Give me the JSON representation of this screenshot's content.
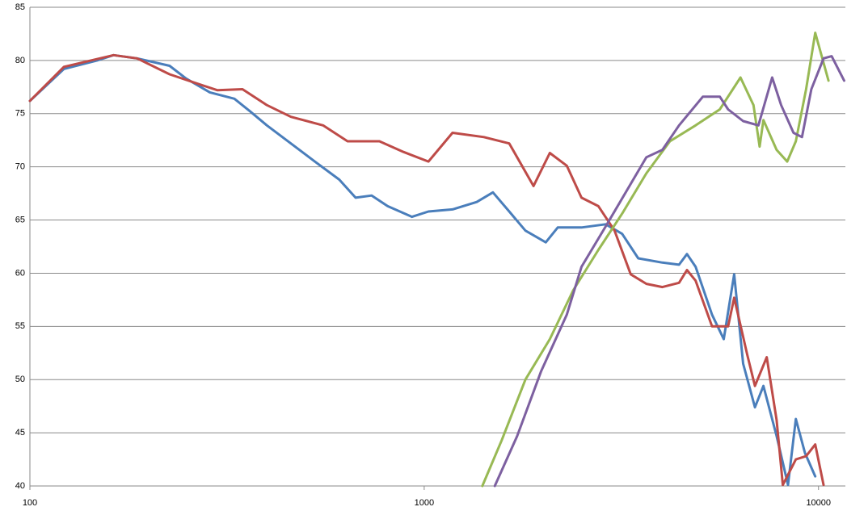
{
  "chart_data": {
    "type": "line",
    "log_x": true,
    "grid": true,
    "xlim": [
      100,
      11700
    ],
    "xticks": [
      100,
      1000,
      10000
    ],
    "ylim": [
      40,
      85
    ],
    "yticks": [
      40,
      45,
      50,
      55,
      60,
      65,
      70,
      75,
      80,
      85
    ],
    "series": [
      {
        "color": "#4a7ebb",
        "x": [
          100,
          122,
          148,
          163,
          187,
          226,
          249,
          286,
          330,
          362,
          399,
          459,
          528,
          609,
          670,
          736,
          808,
          931,
          1025,
          1180,
          1359,
          1494,
          1643,
          1806,
          2034,
          2181,
          2506,
          2886,
          3177,
          3490,
          4020,
          4430,
          4640,
          4880,
          5370,
          5750,
          6110,
          6440,
          6900,
          7250,
          7830,
          8370,
          8760,
          9240,
          9810
        ],
        "values": [
          76.2,
          79.2,
          80.0,
          80.5,
          80.2,
          79.5,
          78.3,
          77.0,
          76.4,
          75.2,
          73.9,
          72.2,
          70.5,
          68.8,
          67.1,
          67.3,
          66.3,
          65.3,
          65.8,
          66.0,
          66.7,
          67.6,
          65.8,
          64.0,
          62.9,
          64.3,
          64.3,
          64.6,
          63.7,
          61.4,
          61.0,
          60.8,
          61.8,
          60.6,
          56.1,
          53.8,
          59.9,
          51.5,
          47.4,
          49.4,
          44.7,
          40.1,
          46.3,
          43.1,
          40.9
        ]
      },
      {
        "color": "#be4b48",
        "x": [
          100,
          122,
          163,
          187,
          226,
          272,
          299,
          346,
          399,
          459,
          554,
          639,
          770,
          886,
          1025,
          1180,
          1417,
          1643,
          1893,
          2083,
          2300,
          2506,
          2765,
          3040,
          3340,
          3660,
          4020,
          4430,
          4640,
          4880,
          5370,
          5900,
          6110,
          6600,
          6900,
          7390,
          7830,
          8120,
          8760,
          9300,
          9810,
          10300
        ],
        "values": [
          76.2,
          79.4,
          80.5,
          80.2,
          78.7,
          77.7,
          77.2,
          77.3,
          75.8,
          74.7,
          73.9,
          72.4,
          72.4,
          71.4,
          70.5,
          73.2,
          72.8,
          72.2,
          68.2,
          71.3,
          70.1,
          67.1,
          66.3,
          64.0,
          59.9,
          59.0,
          58.7,
          59.1,
          60.3,
          59.3,
          55.0,
          55.0,
          57.7,
          52.3,
          49.4,
          52.1,
          46.2,
          40.1,
          42.5,
          42.8,
          43.9,
          40.1
        ]
      },
      {
        "color": "#98b954",
        "x": [
          1404,
          1573,
          1806,
          2083,
          2388,
          2765,
          3177,
          3660,
          4200,
          4880,
          5620,
          6340,
          6840,
          7090,
          7250,
          7830,
          8330,
          8760,
          9300,
          9810,
          10600
        ],
        "values": [
          40,
          44.3,
          50.0,
          53.8,
          58.4,
          62.2,
          65.6,
          69.4,
          72.4,
          73.9,
          75.4,
          78.4,
          75.8,
          71.9,
          74.4,
          71.6,
          70.5,
          72.4,
          77.3,
          82.6,
          78.1
        ]
      },
      {
        "color": "#7d60a0",
        "x": [
          1510,
          1721,
          1980,
          2300,
          2506,
          2886,
          3340,
          3660,
          4020,
          4430,
          5090,
          5620,
          5900,
          6440,
          7040,
          7630,
          8040,
          8640,
          9080,
          9590,
          10300,
          10800,
          11620
        ],
        "values": [
          40,
          44.7,
          50.8,
          56.1,
          60.6,
          64.4,
          68.4,
          70.9,
          71.6,
          73.9,
          76.6,
          76.6,
          75.4,
          74.3,
          73.9,
          78.4,
          75.8,
          73.2,
          72.8,
          77.3,
          80.2,
          80.4,
          78.1
        ]
      }
    ]
  }
}
